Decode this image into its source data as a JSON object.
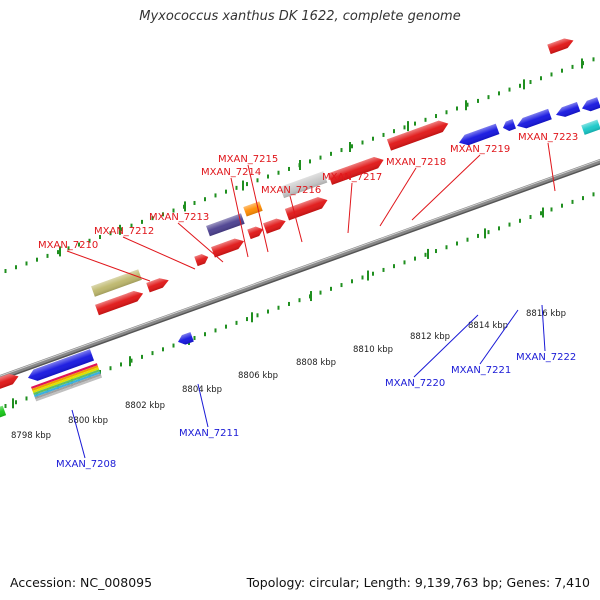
{
  "title": "Myxococcus xanthus DK 1622, complete genome",
  "footer": {
    "accession": "Accession: NC_008095",
    "summary": "Topology: circular; Length: 9,139,763 bp; Genes: 7,410"
  },
  "colors": {
    "forward_label": "#e0161b",
    "reverse_label": "#1a1ad6",
    "red": "#e01414",
    "blue": "#1414e0",
    "olive": "#bdb76b",
    "grey": "#c8c8c8",
    "orange": "#ff8c00",
    "purple": "#4b3f8f",
    "cyan": "#16c8c8",
    "green": "#16c816",
    "tick": "#1f8f1f",
    "backbone": "#888888"
  },
  "ticks": [
    "8798 kbp",
    "8800 kbp",
    "8802 kbp",
    "8804 kbp",
    "8806 kbp",
    "8808 kbp",
    "8810 kbp",
    "8812 kbp",
    "8814 kbp",
    "8816 kbp"
  ],
  "forward_labels": [
    "MXAN_7210",
    "MXAN_7212",
    "MXAN_7213",
    "MXAN_7214",
    "MXAN_7215",
    "MXAN_7216",
    "MXAN_7217",
    "MXAN_7218",
    "MXAN_7219",
    "MXAN_7223"
  ],
  "reverse_labels": [
    "MXAN_7208",
    "MXAN_7211",
    "MXAN_7220",
    "MXAN_7221",
    "MXAN_7222"
  ]
}
